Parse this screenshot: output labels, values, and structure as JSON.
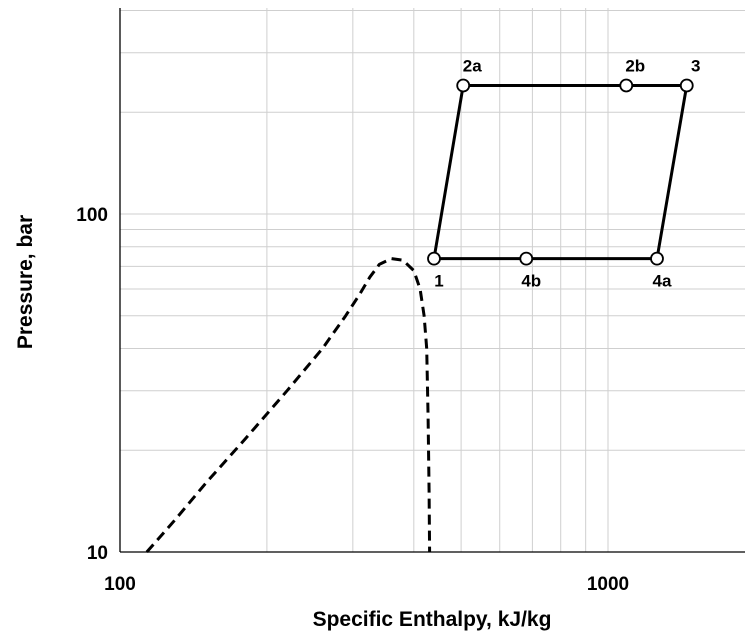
{
  "chart_data": {
    "type": "line",
    "title": "",
    "xlabel": "Specific Enthalpy, kJ/kg",
    "ylabel": "Pressure, bar",
    "xscale": "log",
    "yscale": "log",
    "xlim": [
      100,
      2000
    ],
    "ylim": [
      10,
      400
    ],
    "x_tick_labels": [
      {
        "value": 100,
        "text": "100"
      },
      {
        "value": 1000,
        "text": "1000"
      }
    ],
    "y_tick_labels": [
      {
        "value": 10,
        "text": "10"
      },
      {
        "value": 100,
        "text": "100"
      }
    ],
    "grid": true,
    "legend": "none",
    "series": [
      {
        "style": "dashed",
        "marker": "none",
        "x": [
          113.5,
          130,
          150,
          180,
          220,
          260,
          290,
          310,
          325,
          340,
          360,
          380,
          400,
          412,
          420,
          425,
          428,
          430,
          431
        ],
        "y": [
          10,
          12.5,
          16,
          21.5,
          30,
          40,
          50,
          58,
          65,
          71,
          73.8,
          73,
          68,
          60,
          50,
          40,
          25,
          15,
          10
        ]
      },
      {
        "style": "solid",
        "marker": "circle",
        "x": [
          440,
          505,
          1090,
          1450,
          1260,
          680,
          440
        ],
        "y": [
          73.8,
          240,
          240,
          240,
          73.8,
          73.8,
          73.8
        ]
      }
    ],
    "annotations": [
      {
        "text": "1",
        "x": 440,
        "y": 73.8
      },
      {
        "text": "2a",
        "x": 505,
        "y": 240
      },
      {
        "text": "2b",
        "x": 1090,
        "y": 240
      },
      {
        "text": "3",
        "x": 1450,
        "y": 240
      },
      {
        "text": "4a",
        "x": 1260,
        "y": 73.8
      },
      {
        "text": "4b",
        "x": 680,
        "y": 73.8
      }
    ]
  }
}
